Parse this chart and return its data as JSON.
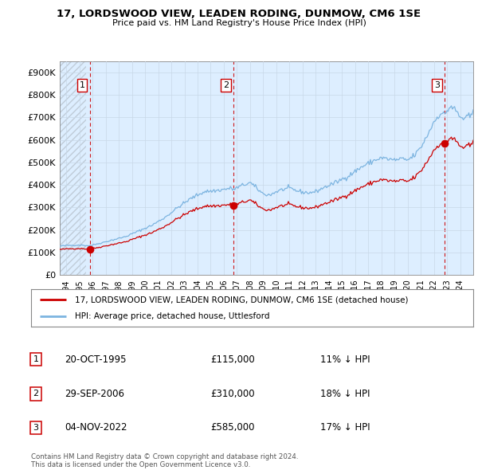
{
  "title": "17, LORDSWOOD VIEW, LEADEN RODING, DUNMOW, CM6 1SE",
  "subtitle": "Price paid vs. HM Land Registry's House Price Index (HPI)",
  "legend_line1": "17, LORDSWOOD VIEW, LEADEN RODING, DUNMOW, CM6 1SE (detached house)",
  "legend_line2": "HPI: Average price, detached house, Uttlesford",
  "copyright": "Contains HM Land Registry data © Crown copyright and database right 2024.\nThis data is licensed under the Open Government Licence v3.0.",
  "sale_points": [
    {
      "num": 1,
      "date": "20-OCT-1995",
      "price": 115000,
      "hpi_rel": "11% ↓ HPI",
      "x": 1995.79
    },
    {
      "num": 2,
      "date": "29-SEP-2006",
      "price": 310000,
      "hpi_rel": "18% ↓ HPI",
      "x": 2006.74
    },
    {
      "num": 3,
      "date": "04-NOV-2022",
      "price": 585000,
      "hpi_rel": "17% ↓ HPI",
      "x": 2022.84
    }
  ],
  "ylim": [
    0,
    950000
  ],
  "xlim": [
    1993.5,
    2025.0
  ],
  "yticks": [
    0,
    100000,
    200000,
    300000,
    400000,
    500000,
    600000,
    700000,
    800000,
    900000
  ],
  "ytick_labels": [
    "£0",
    "£100K",
    "£200K",
    "£300K",
    "£400K",
    "£500K",
    "£600K",
    "£700K",
    "£800K",
    "£900K"
  ],
  "xticks": [
    1994,
    1995,
    1996,
    1997,
    1998,
    1999,
    2000,
    2001,
    2002,
    2003,
    2004,
    2005,
    2006,
    2007,
    2008,
    2009,
    2010,
    2011,
    2012,
    2013,
    2014,
    2015,
    2016,
    2017,
    2018,
    2019,
    2020,
    2021,
    2022,
    2023,
    2024
  ],
  "hpi_color": "#7cb4e0",
  "sale_color": "#cc0000",
  "vline_color": "#cc0000",
  "grid_color": "#c8d8e8",
  "bg_color": "#ffffff",
  "plot_bg_color": "#ddeeff",
  "hatch_color": "#c0ccd8"
}
